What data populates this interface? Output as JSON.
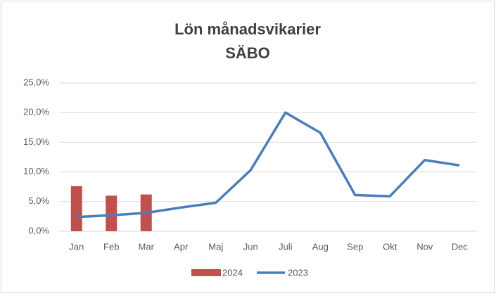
{
  "chart_data": {
    "type": "bar_line",
    "title": [
      "Lön månadsvikarier",
      "SÄBO"
    ],
    "categories": [
      "Jan",
      "Feb",
      "Mar",
      "Apr",
      "Maj",
      "Jun",
      "Juli",
      "Aug",
      "Sep",
      "Okt",
      "Nov",
      "Dec"
    ],
    "series": [
      {
        "name": "2024",
        "type": "bar",
        "color": "#c0504d",
        "values": [
          7.6,
          6.0,
          6.2,
          null,
          null,
          null,
          null,
          null,
          null,
          null,
          null,
          null
        ]
      },
      {
        "name": "2023",
        "type": "line",
        "color": "#4a7ebb",
        "values": [
          2.4,
          2.7,
          3.1,
          4.0,
          4.8,
          10.3,
          20.0,
          16.6,
          6.1,
          5.9,
          12.0,
          11.1
        ]
      }
    ],
    "ylim": [
      0,
      25
    ],
    "yticks": [
      {
        "value": 0,
        "label": "0,0%"
      },
      {
        "value": 5,
        "label": "5,0%"
      },
      {
        "value": 10,
        "label": "10,0%"
      },
      {
        "value": 15,
        "label": "15,0%"
      },
      {
        "value": 20,
        "label": "20,0%"
      },
      {
        "value": 25,
        "label": "25,0%"
      }
    ],
    "grid": true,
    "legend": "bottom"
  }
}
